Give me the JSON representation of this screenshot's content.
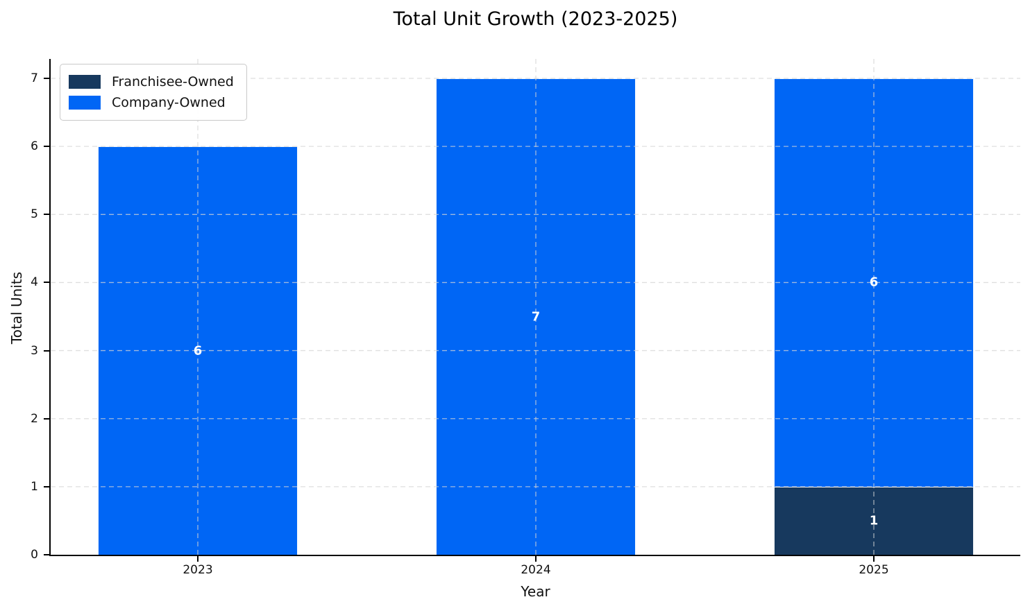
{
  "title": "Total Unit Growth (2023-2025)",
  "chart_data": {
    "type": "bar",
    "stacked": true,
    "title": "Total Unit Growth (2023-2025)",
    "xlabel": "Year",
    "ylabel": "Total Units",
    "categories": [
      "2023",
      "2024",
      "2025"
    ],
    "series": [
      {
        "name": "Franchisee-Owned",
        "color": "#17395e",
        "values": [
          0,
          0,
          1
        ]
      },
      {
        "name": "Company-Owned",
        "color": "#0066f5",
        "values": [
          6,
          7,
          6
        ]
      }
    ],
    "bar_labels": [
      [
        null,
        null,
        "1"
      ],
      [
        "6",
        "7",
        "6"
      ]
    ],
    "bar_label_color": "#ffffff",
    "yticks": [
      0,
      1,
      2,
      3,
      4,
      5,
      6,
      7
    ],
    "ylim": [
      0,
      7.29
    ],
    "grid": "dashed light-gray horizontal and vertical gridlines drawn above bars",
    "grid_color": "#d4d4d4",
    "legend_position": "upper left",
    "legend_entries": [
      "Franchisee-Owned",
      "Company-Owned"
    ]
  }
}
